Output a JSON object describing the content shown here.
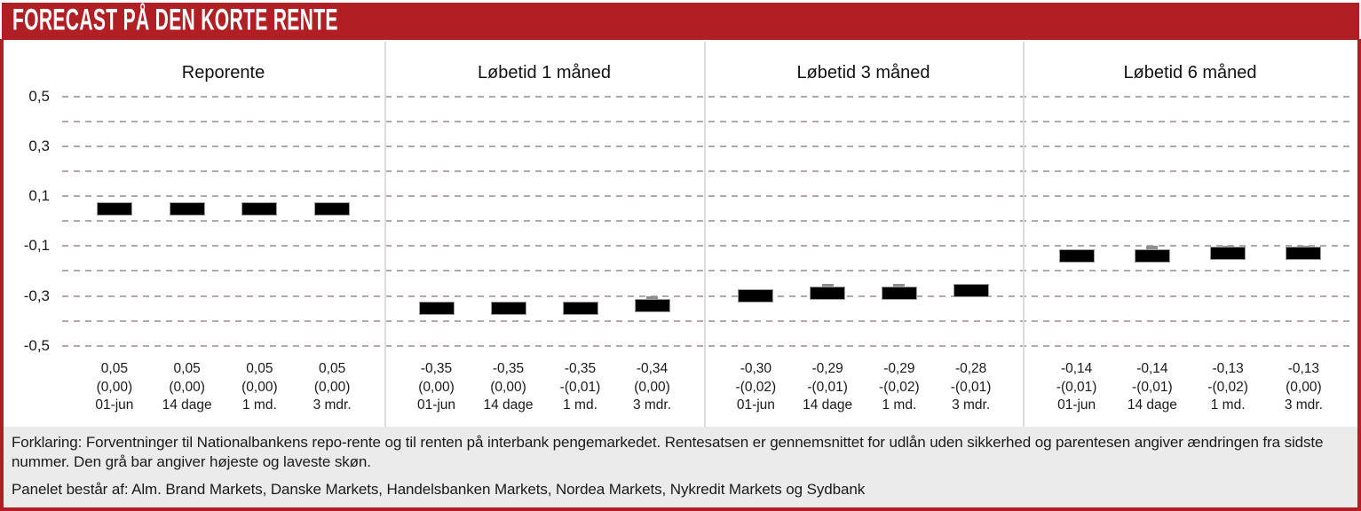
{
  "header": {
    "title": "FORECAST PÅ DEN KORTE RENTE"
  },
  "colors": {
    "banner_red": "#b01f24",
    "frame_red": "#b01f24",
    "bar_black": "#000000",
    "range_bar_gray": "#8f8f8f",
    "footer_bg": "#ebebeb",
    "gridline": "#b4a9a9",
    "panel_divider": "#dcdcdc"
  },
  "chart_data": {
    "type": "bar",
    "ylim": [
      -0.5,
      0.5
    ],
    "ytick_step": 0.1,
    "grid": "horizontal dashed lines every 0.1",
    "legend_position": "none",
    "ytick_labels": [
      {
        "value": 0.5,
        "label": "0,5"
      },
      {
        "value": 0.3,
        "label": "0,3"
      },
      {
        "value": 0.1,
        "label": "0,1"
      },
      {
        "value": -0.1,
        "label": "-0,1"
      },
      {
        "value": -0.3,
        "label": "-0,3"
      },
      {
        "value": -0.5,
        "label": "-0,5"
      }
    ],
    "categories": [
      "01-jun",
      "14 dage",
      "1 md.",
      "3 mdr."
    ],
    "panels": [
      {
        "title": "Reporente",
        "bars": [
          {
            "category": "01-jun",
            "value": 0.05,
            "high": 0.05,
            "value_label": "0,05",
            "change_label": "(0,00)"
          },
          {
            "category": "14 dage",
            "value": 0.05,
            "high": 0.05,
            "value_label": "0,05",
            "change_label": "(0,00)"
          },
          {
            "category": "1 md.",
            "value": 0.05,
            "high": 0.05,
            "value_label": "0,05",
            "change_label": "(0,00)"
          },
          {
            "category": "3 mdr.",
            "value": 0.05,
            "high": 0.05,
            "value_label": "0,05",
            "change_label": "(0,00)"
          }
        ]
      },
      {
        "title": "Løbetid 1 måned",
        "bars": [
          {
            "category": "01-jun",
            "value": -0.35,
            "high": -0.35,
            "value_label": "-0,35",
            "change_label": "(0,00)"
          },
          {
            "category": "14 dage",
            "value": -0.35,
            "high": -0.35,
            "value_label": "-0,35",
            "change_label": "(0,00)"
          },
          {
            "category": "1 md.",
            "value": -0.35,
            "high": -0.35,
            "value_label": "-0,35",
            "change_label": "-(0,01)"
          },
          {
            "category": "3 mdr.",
            "value": -0.34,
            "high": -0.3,
            "value_label": "-0,34",
            "change_label": "(0,00)"
          }
        ]
      },
      {
        "title": "Løbetid 3 måned",
        "bars": [
          {
            "category": "01-jun",
            "value": -0.3,
            "high": -0.3,
            "value_label": "-0,30",
            "change_label": "-(0,02)"
          },
          {
            "category": "14 dage",
            "value": -0.29,
            "high": -0.25,
            "value_label": "-0,29",
            "change_label": "-(0,01)"
          },
          {
            "category": "1 md.",
            "value": -0.29,
            "high": -0.25,
            "value_label": "-0,29",
            "change_label": "-(0,02)"
          },
          {
            "category": "3 mdr.",
            "value": -0.28,
            "high": -0.25,
            "value_label": "-0,28",
            "change_label": "-(0,01)"
          }
        ]
      },
      {
        "title": "Løbetid 6 måned",
        "bars": [
          {
            "category": "01-jun",
            "value": -0.14,
            "high": -0.14,
            "value_label": "-0,14",
            "change_label": "-(0,01)"
          },
          {
            "category": "14 dage",
            "value": -0.14,
            "high": -0.1,
            "value_label": "-0,14",
            "change_label": "-(0,01)"
          },
          {
            "category": "1 md.",
            "value": -0.13,
            "high": -0.1,
            "value_label": "-0,13",
            "change_label": "-(0,02)"
          },
          {
            "category": "3 mdr.",
            "value": -0.13,
            "high": -0.1,
            "value_label": "-0,13",
            "change_label": "(0,00)"
          }
        ]
      }
    ]
  },
  "footer": {
    "explanation": "Forklaring: Forventninger til Nationalbankens repo-rente og til renten på interbank pengemarkedet. Rentesatsen er gennemsnittet for udlån uden sikkerhed og parentesen angiver ændringen fra sidste nummer. Den grå bar angiver højeste og laveste skøn.",
    "panel_line": "Panelet består af: Alm. Brand Markets, Danske Markets, Handelsbanken Markets, Nordea Markets, Nykredit Markets og Sydbank"
  }
}
